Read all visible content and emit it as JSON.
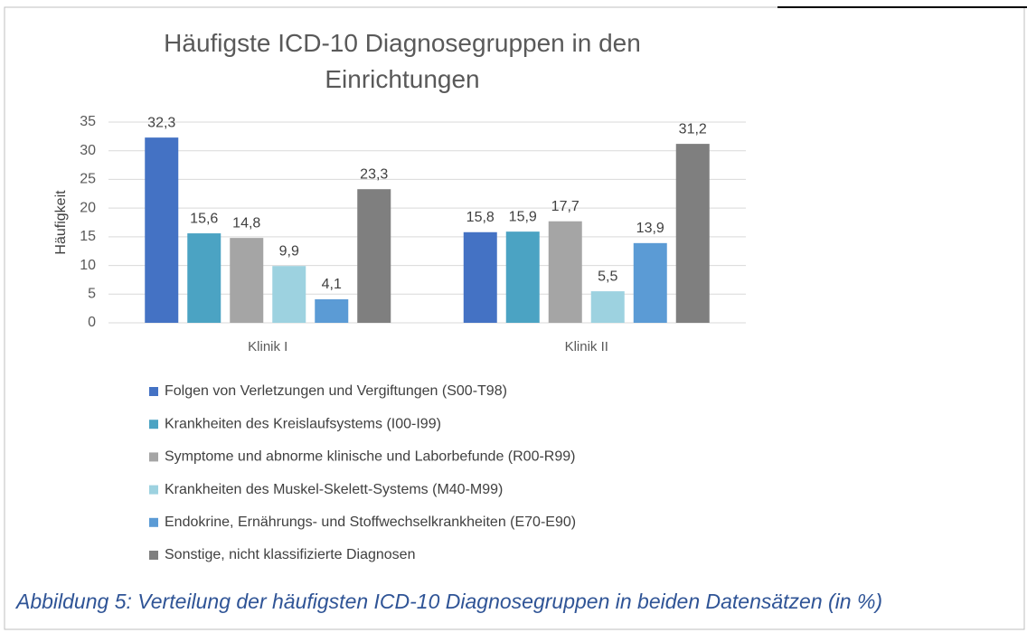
{
  "chart_data": {
    "type": "bar",
    "title": "Häufigste ICD-10 Diagnosegruppen in den Einrichtungen",
    "y_label": "Häufigkeit",
    "categories": [
      "Klinik I",
      "Klinik II"
    ],
    "series": [
      {
        "name": "Folgen von Verletzungen und Vergiftungen (S00-T98)",
        "color": "#4472c4",
        "values": [
          32.3,
          15.8
        ],
        "value_labels": [
          "32,3",
          "15,8"
        ]
      },
      {
        "name": "Krankheiten des Kreislaufsystems (I00-I99)",
        "color": "#4ba3c3",
        "values": [
          15.6,
          15.9
        ],
        "value_labels": [
          "15,6",
          "15,9"
        ]
      },
      {
        "name": "Symptome und abnorme klinische und Laborbefunde (R00-R99)",
        "color": "#a5a5a5",
        "values": [
          14.8,
          17.7
        ],
        "value_labels": [
          "14,8",
          "17,7"
        ]
      },
      {
        "name": "Krankheiten des Muskel-Skelett-Systems (M40-M99)",
        "color": "#9dd2e0",
        "values": [
          9.9,
          5.5
        ],
        "value_labels": [
          "9,9",
          "5,5"
        ]
      },
      {
        "name": "Endokrine, Ernährungs- und Stoffwechselkrankheiten (E70-E90)",
        "color": "#5b9bd5",
        "values": [
          4.1,
          13.9
        ],
        "value_labels": [
          "4,1",
          "13,9"
        ]
      },
      {
        "name": "Sonstige, nicht klassifizierte Diagnosen",
        "color": "#7f7f7f",
        "values": [
          23.3,
          31.2
        ],
        "value_labels": [
          "23,3",
          "31,2"
        ]
      }
    ],
    "ylim": [
      0,
      35
    ],
    "yticks": [
      0,
      5,
      10,
      15,
      20,
      25,
      30,
      35
    ],
    "grid": true,
    "legend": "bottom"
  },
  "caption": "Abbildung 5: Verteilung der häufigsten ICD-10 Diagnosegruppen in beiden Datensätzen (in %)"
}
